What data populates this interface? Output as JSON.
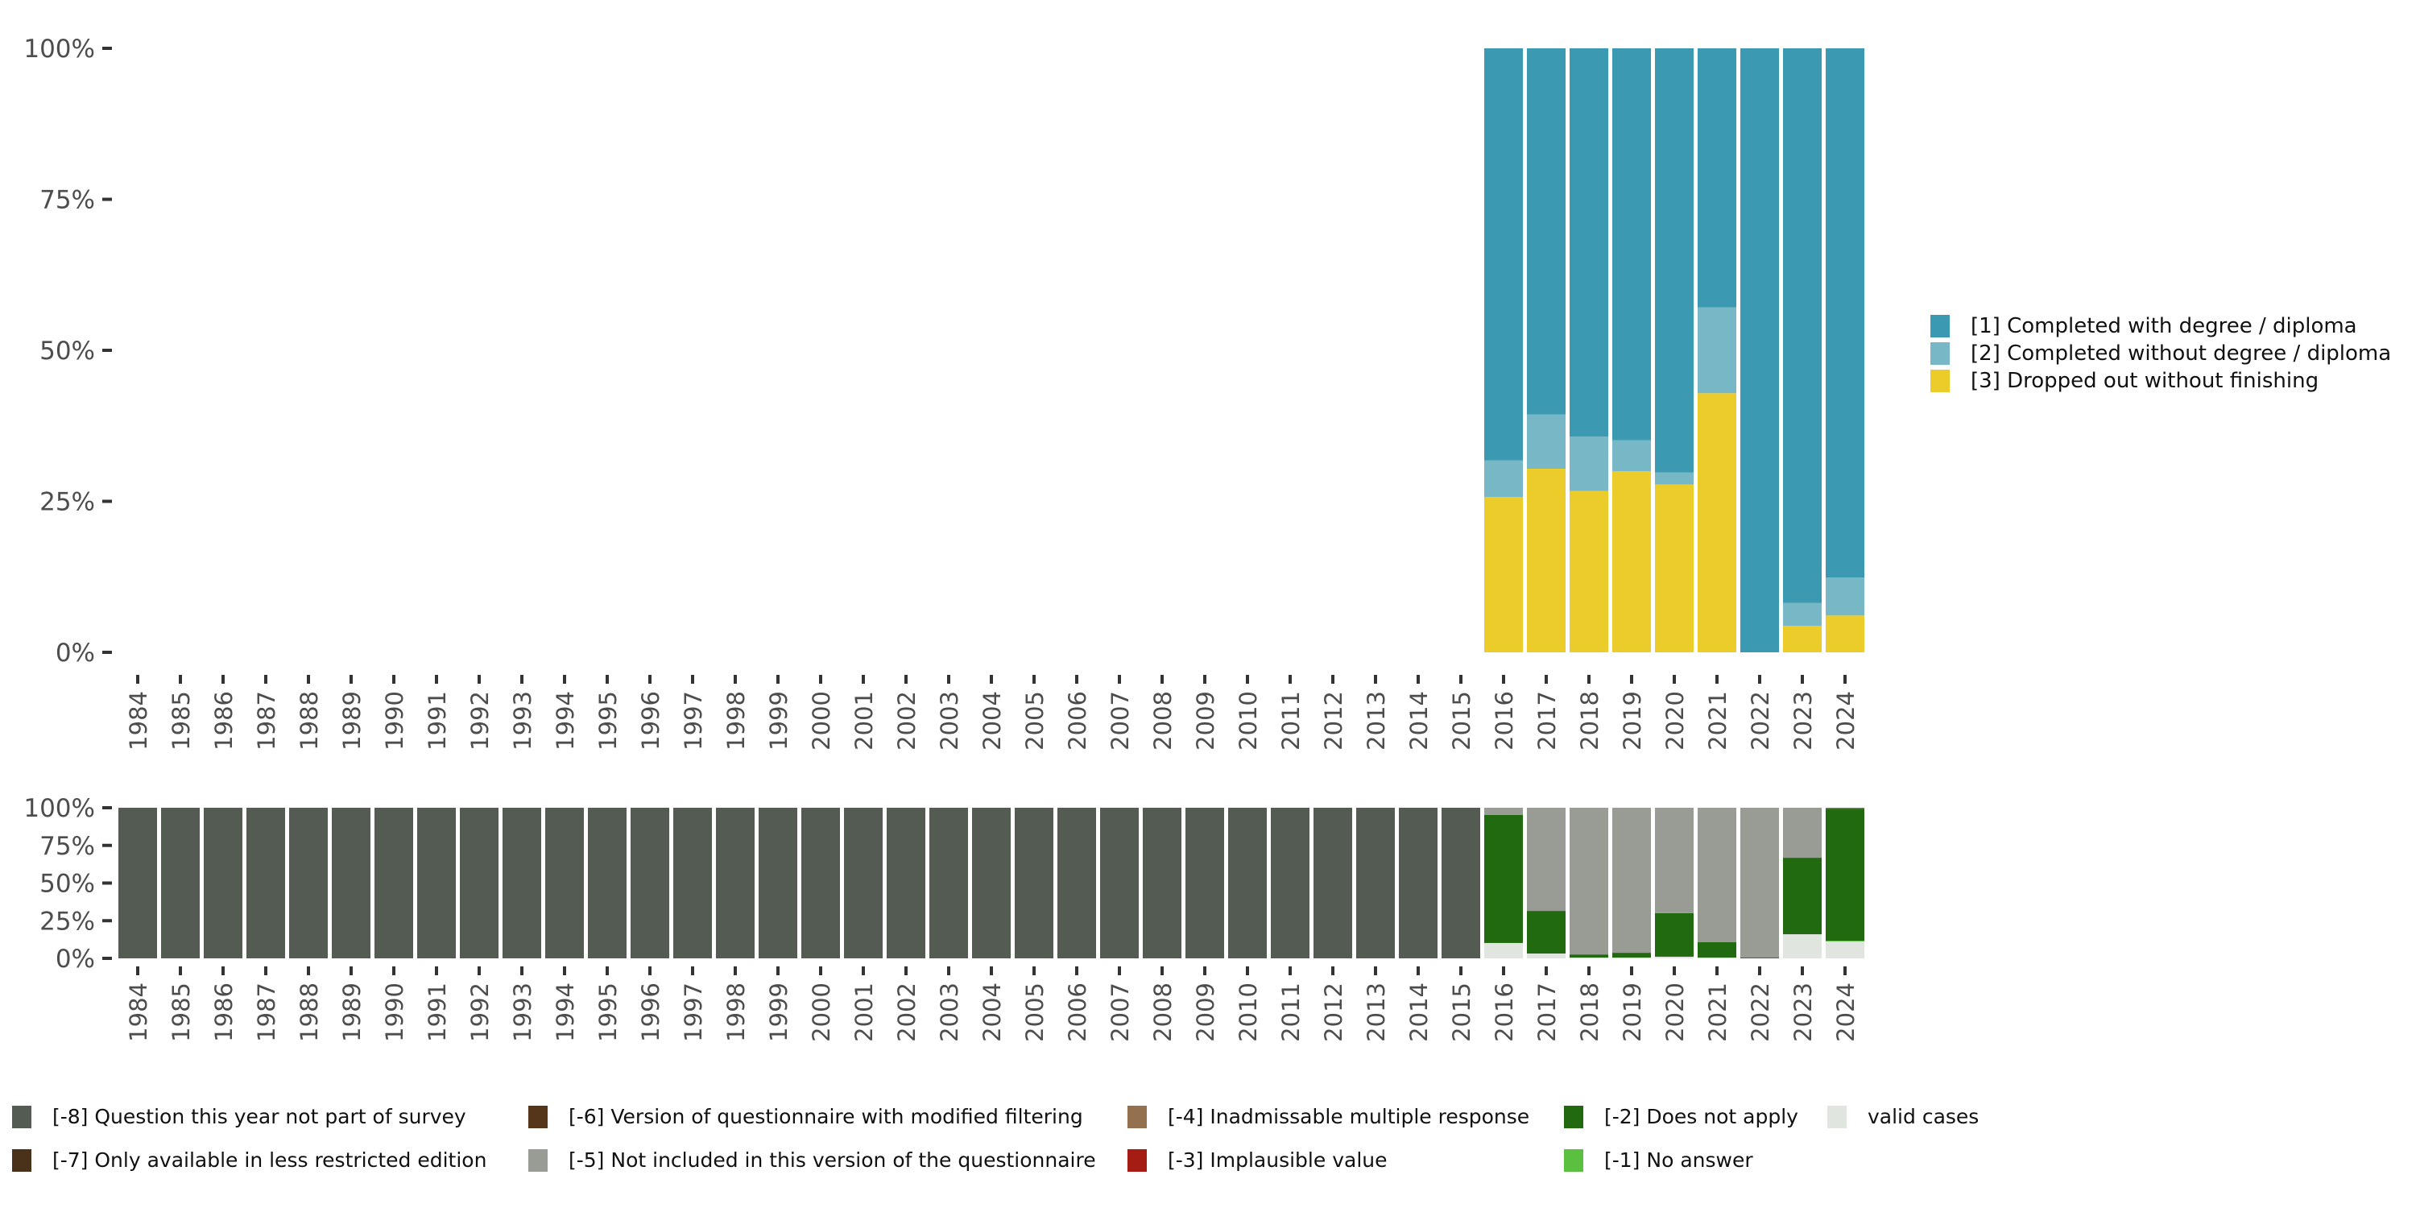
{
  "chart_data": [
    {
      "type": "bar",
      "stacked": true,
      "title": "",
      "xlabel": "",
      "ylabel": "",
      "ylim": [
        0,
        100
      ],
      "y_ticks": [
        "0%",
        "25%",
        "50%",
        "75%",
        "100%"
      ],
      "categories": [
        "1984",
        "1985",
        "1986",
        "1987",
        "1988",
        "1989",
        "1990",
        "1991",
        "1992",
        "1993",
        "1994",
        "1995",
        "1996",
        "1997",
        "1998",
        "1999",
        "2000",
        "2001",
        "2002",
        "2003",
        "2004",
        "2005",
        "2006",
        "2007",
        "2008",
        "2009",
        "2010",
        "2011",
        "2012",
        "2013",
        "2014",
        "2015",
        "2016",
        "2017",
        "2018",
        "2019",
        "2020",
        "2021",
        "2022",
        "2023",
        "2024"
      ],
      "legend_position": "right",
      "series": [
        {
          "name": "[3] Dropped out without finishing",
          "color": "#EBCC2A",
          "values": [
            0,
            0,
            0,
            0,
            0,
            0,
            0,
            0,
            0,
            0,
            0,
            0,
            0,
            0,
            0,
            0,
            0,
            0,
            0,
            0,
            0,
            0,
            0,
            0,
            0,
            0,
            0,
            0,
            0,
            0,
            0,
            0,
            25.7,
            30.4,
            26.7,
            30.0,
            27.8,
            42.9,
            0,
            4.4,
            6.1
          ]
        },
        {
          "name": "[2] Completed without degree / diploma",
          "color": "#78B7C5",
          "values": [
            0,
            0,
            0,
            0,
            0,
            0,
            0,
            0,
            0,
            0,
            0,
            0,
            0,
            0,
            0,
            0,
            0,
            0,
            0,
            0,
            0,
            0,
            0,
            0,
            0,
            0,
            0,
            0,
            0,
            0,
            0,
            0,
            6.1,
            9.0,
            9.0,
            5.1,
            2.0,
            14.2,
            0,
            3.8,
            6.3
          ]
        },
        {
          "name": "[1] Completed with degree / diploma",
          "color": "#3B9AB2",
          "values": [
            0,
            0,
            0,
            0,
            0,
            0,
            0,
            0,
            0,
            0,
            0,
            0,
            0,
            0,
            0,
            0,
            0,
            0,
            0,
            0,
            0,
            0,
            0,
            0,
            0,
            0,
            0,
            0,
            0,
            0,
            0,
            0,
            68.2,
            60.6,
            64.3,
            64.9,
            70.2,
            42.9,
            100,
            91.8,
            87.6
          ]
        }
      ]
    },
    {
      "type": "bar",
      "stacked": true,
      "title": "",
      "xlabel": "",
      "ylabel": "",
      "ylim": [
        0,
        100
      ],
      "y_ticks": [
        "0%",
        "25%",
        "50%",
        "75%",
        "100%"
      ],
      "categories": [
        "1984",
        "1985",
        "1986",
        "1987",
        "1988",
        "1989",
        "1990",
        "1991",
        "1992",
        "1993",
        "1994",
        "1995",
        "1996",
        "1997",
        "1998",
        "1999",
        "2000",
        "2001",
        "2002",
        "2003",
        "2004",
        "2005",
        "2006",
        "2007",
        "2008",
        "2009",
        "2010",
        "2011",
        "2012",
        "2013",
        "2014",
        "2015",
        "2016",
        "2017",
        "2018",
        "2019",
        "2020",
        "2021",
        "2022",
        "2023",
        "2024"
      ],
      "legend_position": "bottom",
      "series": [
        {
          "name": "valid cases",
          "color": "#E1E5E0",
          "values": [
            0,
            0,
            0,
            0,
            0,
            0,
            0,
            0,
            0,
            0,
            0,
            0,
            0,
            0,
            0,
            0,
            0,
            0,
            0,
            0,
            0,
            0,
            0,
            0,
            0,
            0,
            0,
            0,
            0,
            0,
            0,
            0,
            10.2,
            3.2,
            0.5,
            0.5,
            1.1,
            0.5,
            0,
            16.0,
            11.2
          ]
        },
        {
          "name": "[-1] No answer",
          "color": "#5BBF3F",
          "values": [
            0,
            0,
            0,
            0,
            0,
            0,
            0,
            0,
            0,
            0,
            0,
            0,
            0,
            0,
            0,
            0,
            0,
            0,
            0,
            0,
            0,
            0,
            0,
            0,
            0,
            0,
            0,
            0,
            0,
            0,
            0,
            0,
            0,
            0,
            0,
            0,
            0,
            0,
            0,
            0,
            0.5
          ]
        },
        {
          "name": "[-2] Does not apply",
          "color": "#216A0F",
          "values": [
            0,
            0,
            0,
            0,
            0,
            0,
            0,
            0,
            0,
            0,
            0,
            0,
            0,
            0,
            0,
            0,
            0,
            0,
            0,
            0,
            0,
            0,
            0,
            0,
            0,
            0,
            0,
            0,
            0,
            0,
            0,
            0,
            85.0,
            28.3,
            2.1,
            3.2,
            28.9,
            10.2,
            0.5,
            50.8,
            87.7
          ]
        },
        {
          "name": "[-3] Implausible value",
          "color": "#A51C15",
          "values": [
            0,
            0,
            0,
            0,
            0,
            0,
            0,
            0,
            0,
            0,
            0,
            0,
            0,
            0,
            0,
            0,
            0,
            0,
            0,
            0,
            0,
            0,
            0,
            0,
            0,
            0,
            0,
            0,
            0,
            0,
            0,
            0,
            0,
            0,
            0,
            0,
            0,
            0,
            0,
            0,
            0
          ]
        },
        {
          "name": "[-4] Inadmissable multiple response",
          "color": "#93714E",
          "values": [
            0,
            0,
            0,
            0,
            0,
            0,
            0,
            0,
            0,
            0,
            0,
            0,
            0,
            0,
            0,
            0,
            0,
            0,
            0,
            0,
            0,
            0,
            0,
            0,
            0,
            0,
            0,
            0,
            0,
            0,
            0,
            0,
            0,
            0,
            0,
            0,
            0,
            0,
            0,
            0,
            0.6
          ]
        },
        {
          "name": "[-5] Not included in this version of the questionnaire",
          "color": "#989C94",
          "values": [
            0,
            0,
            0,
            0,
            0,
            0,
            0,
            0,
            0,
            0,
            0,
            0,
            0,
            0,
            0,
            0,
            0,
            0,
            0,
            0,
            0,
            0,
            0,
            0,
            0,
            0,
            0,
            0,
            0,
            0,
            0,
            0,
            4.8,
            68.5,
            97.4,
            96.3,
            70.0,
            89.3,
            99.5,
            33.2,
            0
          ]
        },
        {
          "name": "[-6] Version of questionnaire with modified filtering",
          "color": "#55361A",
          "values": [
            0,
            0,
            0,
            0,
            0,
            0,
            0,
            0,
            0,
            0,
            0,
            0,
            0,
            0,
            0,
            0,
            0,
            0,
            0,
            0,
            0,
            0,
            0,
            0,
            0,
            0,
            0,
            0,
            0,
            0,
            0,
            0,
            0,
            0,
            0,
            0,
            0,
            0,
            0,
            0,
            0
          ]
        },
        {
          "name": "[-7] Only available in less restricted edition",
          "color": "#4A3119",
          "values": [
            0,
            0,
            0,
            0,
            0,
            0,
            0,
            0,
            0,
            0,
            0,
            0,
            0,
            0,
            0,
            0,
            0,
            0,
            0,
            0,
            0,
            0,
            0,
            0,
            0,
            0,
            0,
            0,
            0,
            0,
            0,
            0,
            0,
            0,
            0,
            0,
            0,
            0,
            0,
            0,
            0
          ]
        },
        {
          "name": "[-8] Question this year not part of survey",
          "color": "#545B53",
          "values": [
            100,
            100,
            100,
            100,
            100,
            100,
            100,
            100,
            100,
            100,
            100,
            100,
            100,
            100,
            100,
            100,
            100,
            100,
            100,
            100,
            100,
            100,
            100,
            100,
            100,
            100,
            100,
            100,
            100,
            100,
            100,
            100,
            0,
            0,
            0,
            0,
            0,
            0,
            0,
            0,
            0
          ]
        }
      ]
    }
  ],
  "legend_top": [
    {
      "label": "[1] Completed with degree / diploma",
      "color": "#3B9AB2"
    },
    {
      "label": "[2] Completed without degree / diploma",
      "color": "#78B7C5"
    },
    {
      "label": "[3] Dropped out without finishing",
      "color": "#EBCC2A"
    }
  ],
  "legend_bottom": [
    {
      "label": "[-8] Question this year not part of survey",
      "color": "#545B53"
    },
    {
      "label": "[-7] Only available in less restricted edition",
      "color": "#4A3119"
    },
    {
      "label": "[-6] Version of questionnaire with modified filtering",
      "color": "#55361A"
    },
    {
      "label": "[-5] Not included in this version of the questionnaire",
      "color": "#989C94"
    },
    {
      "label": "[-4] Inadmissable multiple response",
      "color": "#93714E"
    },
    {
      "label": "[-3] Implausible value",
      "color": "#A51C15"
    },
    {
      "label": "[-2] Does not apply",
      "color": "#216A0F"
    },
    {
      "label": "[-1] No answer",
      "color": "#5BBF3F"
    },
    {
      "label": "valid cases",
      "color": "#E1E5E0"
    }
  ]
}
